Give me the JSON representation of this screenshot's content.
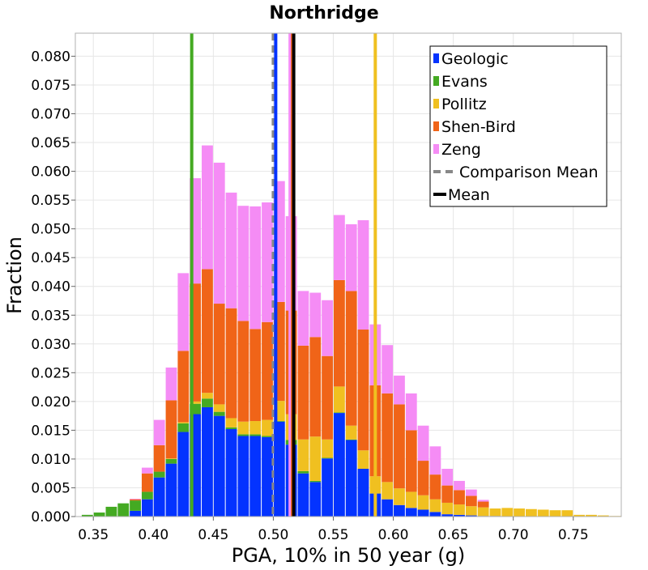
{
  "chart_data": {
    "type": "bar",
    "stacked": true,
    "title": "Northridge",
    "xlabel": "PGA, 10% in 50 year (g)",
    "ylabel": "Fraction",
    "xlim": [
      0.335,
      0.79
    ],
    "ylim": [
      0,
      0.084
    ],
    "grid": true,
    "legend_position": "top-right",
    "bin_width": 0.01,
    "x_ticks": [
      "0.35",
      "0.40",
      "0.45",
      "0.50",
      "0.55",
      "0.60",
      "0.65",
      "0.70",
      "0.75"
    ],
    "y_ticks": [
      "0.000",
      "0.005",
      "0.010",
      "0.015",
      "0.020",
      "0.025",
      "0.030",
      "0.035",
      "0.040",
      "0.045",
      "0.050",
      "0.055",
      "0.060",
      "0.065",
      "0.070",
      "0.075",
      "0.080"
    ],
    "bin_centers": [
      0.345,
      0.355,
      0.365,
      0.375,
      0.385,
      0.395,
      0.405,
      0.415,
      0.425,
      0.435,
      0.445,
      0.455,
      0.465,
      0.475,
      0.485,
      0.495,
      0.505,
      0.515,
      0.525,
      0.535,
      0.545,
      0.555,
      0.565,
      0.575,
      0.585,
      0.595,
      0.605,
      0.615,
      0.625,
      0.635,
      0.645,
      0.655,
      0.665,
      0.675,
      0.685,
      0.695,
      0.705,
      0.715,
      0.725,
      0.735,
      0.745,
      0.755,
      0.765,
      0.775,
      0.785
    ],
    "series": [
      {
        "name": "Geologic",
        "color": "#0433ff",
        "values": [
          0,
          0,
          0,
          0,
          0.001,
          0.003,
          0.0068,
          0.0092,
          0.0147,
          0.0178,
          0.019,
          0.0175,
          0.0152,
          0.014,
          0.014,
          0.0138,
          0.0165,
          0.0125,
          0.0075,
          0.006,
          0.0101,
          0.018,
          0.0133,
          0.0083,
          0.004,
          0.003,
          0.002,
          0.0015,
          0.0012,
          0.0008,
          0.0004,
          0.0003,
          0.0002,
          0.0001,
          0.0001,
          0,
          0,
          0,
          0,
          0,
          0,
          0,
          0,
          0,
          0
        ]
      },
      {
        "name": "Evans",
        "color": "#44aa22",
        "values": [
          0.0003,
          0.0007,
          0.0017,
          0.0023,
          0.0018,
          0.0013,
          0.001,
          0.0008,
          0.0015,
          0.0018,
          0.0015,
          0.0007,
          0.0003,
          0.0003,
          0.0003,
          0.0002,
          0.0001,
          0.0008,
          0.0004,
          0.0002,
          0.0001,
          0.0001,
          0.0001,
          0,
          0,
          0,
          0,
          0,
          0,
          0,
          0,
          0,
          0,
          0,
          0,
          0,
          0,
          0,
          0,
          0,
          0,
          0,
          0,
          0,
          0
        ]
      },
      {
        "name": "Pollitz",
        "color": "#f0c020",
        "values": [
          0,
          0,
          0,
          0,
          0,
          0,
          0,
          0.0001,
          0.0002,
          0.0004,
          0.001,
          0.0013,
          0.0016,
          0.0022,
          0.0023,
          0.0028,
          0.0035,
          0.0045,
          0.0055,
          0.0077,
          0.0032,
          0.0045,
          0.0024,
          0.0032,
          0.003,
          0.003,
          0.0029,
          0.0028,
          0.0025,
          0.0022,
          0.002,
          0.0018,
          0.0016,
          0.0015,
          0.0013,
          0.0015,
          0.0014,
          0.0013,
          0.0012,
          0.0011,
          0.0011,
          0.0003,
          0.0003,
          0.0002,
          0.0001
        ]
      },
      {
        "name": "Shen-Bird",
        "color": "#f06418",
        "values": [
          0,
          0,
          0,
          0,
          0.0002,
          0.0032,
          0.0046,
          0.0101,
          0.0124,
          0.0205,
          0.0215,
          0.0175,
          0.0191,
          0.0175,
          0.016,
          0.017,
          0.0172,
          0.018,
          0.0163,
          0.0173,
          0.0145,
          0.0185,
          0.0234,
          0.021,
          0.0158,
          0.0154,
          0.0146,
          0.0107,
          0.006,
          0.0043,
          0.003,
          0.0025,
          0.0018,
          0.001,
          0,
          0,
          0,
          0,
          0,
          0,
          0,
          0,
          0,
          0,
          0
        ]
      },
      {
        "name": "Zeng",
        "color": "#f58cf5",
        "values": [
          0,
          0,
          0,
          0,
          0.0001,
          0.001,
          0.0044,
          0.0057,
          0.0135,
          0.0183,
          0.0215,
          0.0245,
          0.0201,
          0.02,
          0.0213,
          0.0208,
          0.021,
          0.0164,
          0.0095,
          0.0077,
          0.0097,
          0.0113,
          0.0116,
          0.019,
          0.0106,
          0.0084,
          0.005,
          0.0064,
          0.0061,
          0.0049,
          0.0029,
          0.0016,
          0.0011,
          0.0003,
          0,
          0,
          0,
          0,
          0,
          0,
          0,
          0,
          0,
          0,
          0
        ]
      }
    ],
    "reference_lines": [
      {
        "name": "Evans",
        "x": 0.432,
        "color": "#44aa22",
        "style": "solid"
      },
      {
        "name": "Comparison Mean",
        "x": 0.5,
        "color": "#888888",
        "style": "dashed"
      },
      {
        "name": "Geologic",
        "x": 0.502,
        "color": "#0433ff",
        "style": "solid"
      },
      {
        "name": "Zeng",
        "x": 0.514,
        "color": "#f58cf5",
        "style": "solid"
      },
      {
        "name": "Shen-Bird",
        "x": 0.516,
        "color": "#f06418",
        "style": "solid"
      },
      {
        "name": "Mean",
        "x": 0.517,
        "color": "#000000",
        "style": "solid"
      },
      {
        "name": "Pollitz",
        "x": 0.585,
        "color": "#f0c020",
        "style": "solid"
      }
    ],
    "legend": [
      {
        "label": "Geologic",
        "color": "#0433ff",
        "kind": "box"
      },
      {
        "label": "Evans",
        "color": "#44aa22",
        "kind": "box"
      },
      {
        "label": "Pollitz",
        "color": "#f0c020",
        "kind": "box"
      },
      {
        "label": "Shen-Bird",
        "color": "#f06418",
        "kind": "box"
      },
      {
        "label": "Zeng",
        "color": "#f58cf5",
        "kind": "box"
      },
      {
        "label": "Comparison Mean",
        "color": "#888888",
        "kind": "dashed"
      },
      {
        "label": "Mean",
        "color": "#000000",
        "kind": "line"
      }
    ]
  }
}
